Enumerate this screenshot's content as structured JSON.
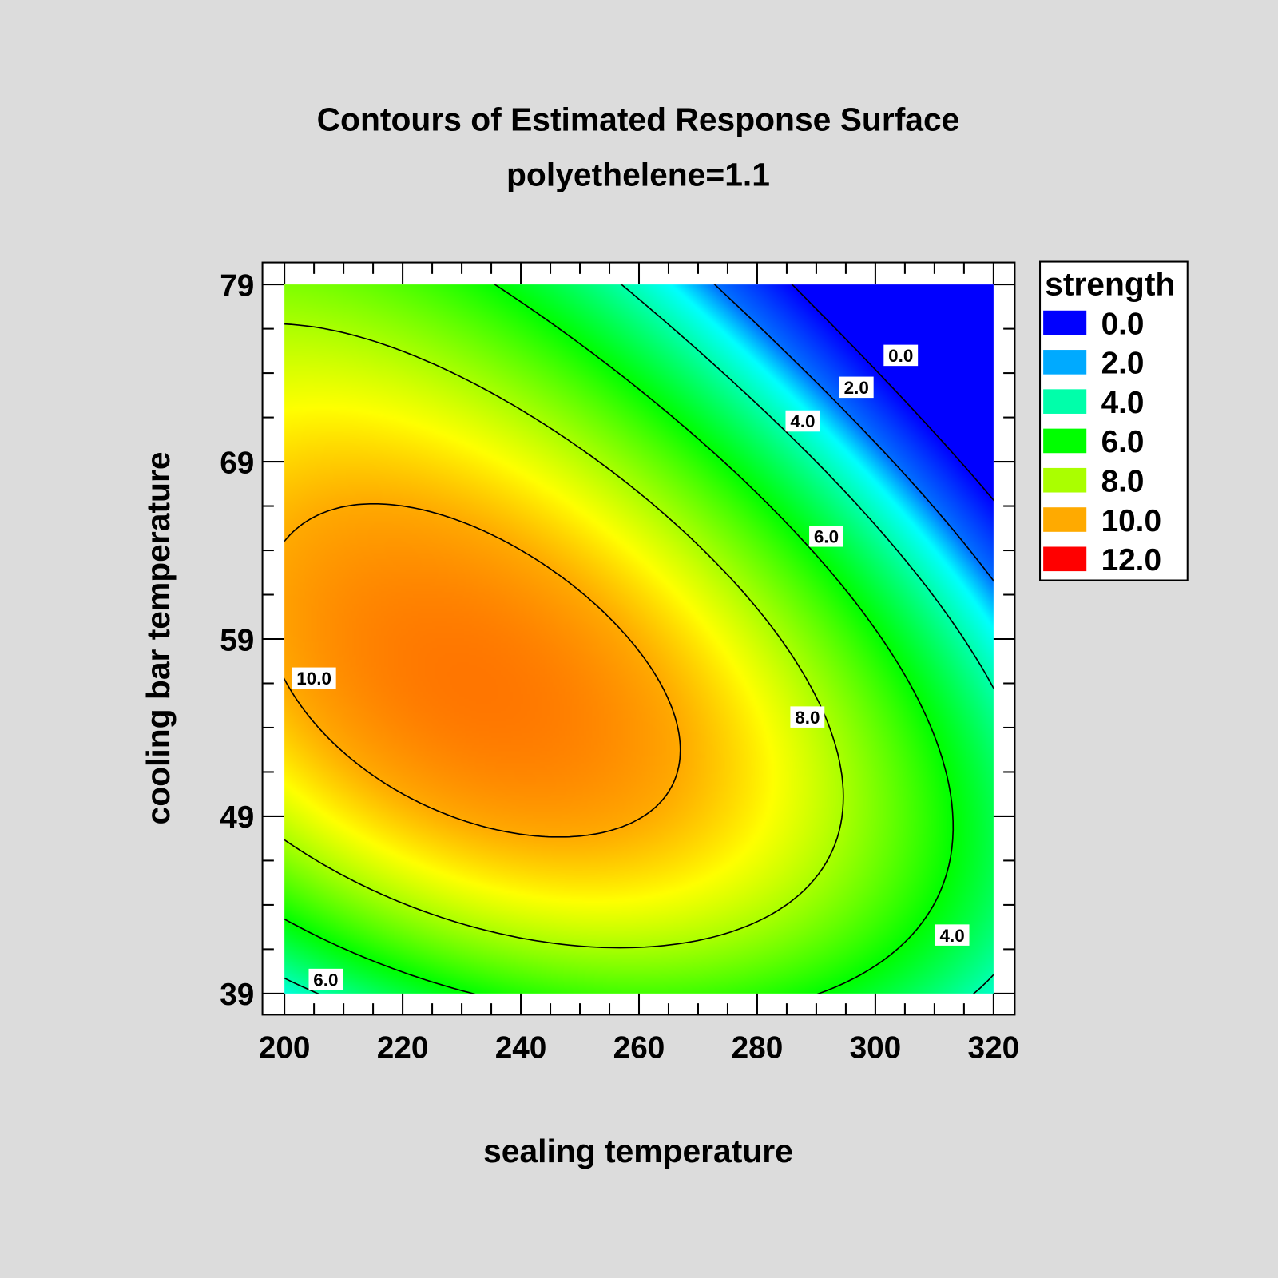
{
  "chart_data": {
    "type": "heatmap",
    "subtype": "contour",
    "title": "Contours of Estimated Response Surface",
    "subtitle": "polyethelene=1.1",
    "xlabel": "sealing temperature",
    "ylabel": "cooling bar temperature",
    "xlim": [
      200,
      320
    ],
    "ylim": [
      39,
      79
    ],
    "xticks": [
      "200",
      "220",
      "240",
      "260",
      "280",
      "300",
      "320"
    ],
    "xtick_values": [
      200,
      220,
      240,
      260,
      280,
      300,
      320
    ],
    "yticks": [
      "39",
      "49",
      "59",
      "69",
      "79"
    ],
    "ytick_values": [
      39,
      49,
      59,
      69,
      79
    ],
    "x_minor_step": 5,
    "y_minor_step": 2.5,
    "legend": {
      "title": "strength",
      "placement": "right",
      "items": [
        {
          "label": "0.0",
          "color": "#0000ff"
        },
        {
          "label": "2.0",
          "color": "#00aaff"
        },
        {
          "label": "4.0",
          "color": "#00ffaa"
        },
        {
          "label": "6.0",
          "color": "#00ff00"
        },
        {
          "label": "8.0",
          "color": "#aaff00"
        },
        {
          "label": "10.0",
          "color": "#ffaa00"
        },
        {
          "label": "12.0",
          "color": "#ff0000"
        }
      ]
    },
    "color_scale": [
      [
        0,
        "#0000ff"
      ],
      [
        2,
        "#0070ff"
      ],
      [
        3,
        "#00ffff"
      ],
      [
        4,
        "#00ffaa"
      ],
      [
        6,
        "#00ff00"
      ],
      [
        8,
        "#aaff00"
      ],
      [
        9,
        "#ffff00"
      ],
      [
        10,
        "#ffaa00"
      ],
      [
        11,
        "#ff7000"
      ],
      [
        12,
        "#ff0000"
      ]
    ],
    "surface_model": {
      "peak_value": 10.9,
      "center": [
        232,
        56.5
      ],
      "coef_dx2": 0.0009,
      "coef_dy2": 0.013,
      "coef_dxdy": 0.003,
      "coef_dy3": -0.00017
    },
    "contour_levels": [
      0,
      2,
      4,
      6,
      8,
      10
    ],
    "contour_labels": [
      {
        "text": "0.0",
        "x": 304.3,
        "y": 75.0
      },
      {
        "text": "2.0",
        "x": 296.8,
        "y": 73.2
      },
      {
        "text": "4.0",
        "x": 287.7,
        "y": 71.3
      },
      {
        "text": "6.0",
        "x": 291.7,
        "y": 64.8
      },
      {
        "text": "8.0",
        "x": 288.5,
        "y": 54.6
      },
      {
        "text": "10.0",
        "x": 205.0,
        "y": 56.8
      },
      {
        "text": "6.0",
        "x": 207.0,
        "y": 39.8
      },
      {
        "text": "4.0",
        "x": 313.0,
        "y": 42.3
      }
    ]
  }
}
